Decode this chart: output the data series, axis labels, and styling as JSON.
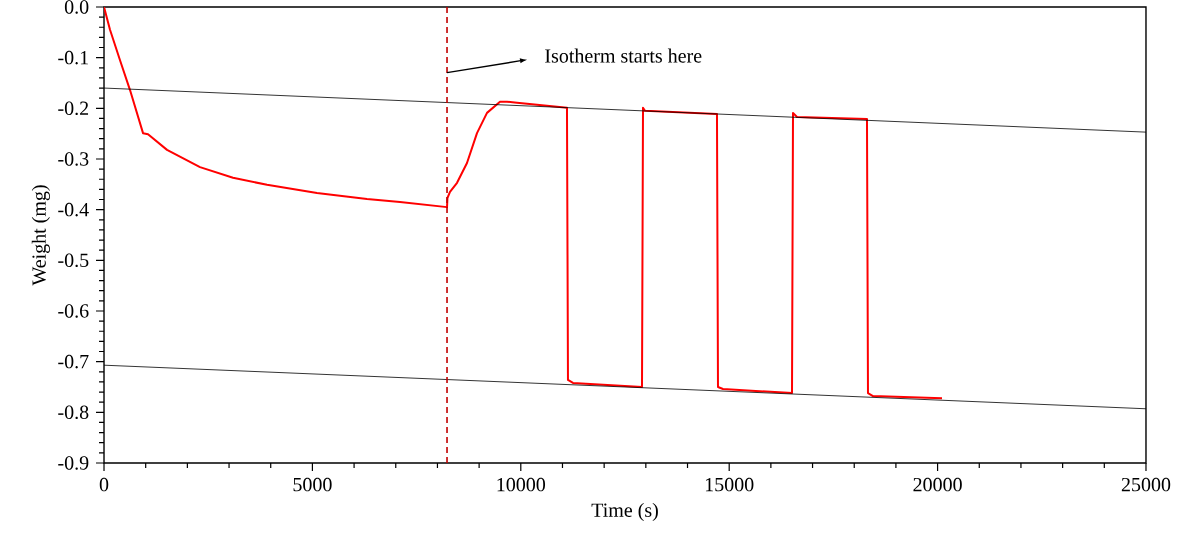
{
  "chart_data": {
    "type": "line",
    "xlabel": "Time (s)",
    "ylabel": "Weight (mg)",
    "xlim": [
      0,
      25000
    ],
    "ylim": [
      -0.9,
      0
    ],
    "xticks": [
      0,
      5000,
      10000,
      15000,
      20000,
      25000
    ],
    "yticks": [
      {
        "value": 0,
        "label": "0.0"
      },
      -0.1,
      -0.2,
      -0.3,
      -0.4,
      -0.5,
      -0.6,
      -0.7,
      -0.8,
      -0.9
    ],
    "series": [
      {
        "color": "#ff0000",
        "x": [
          0,
          144,
          384,
          624,
          936,
          1056,
          1512,
          2303,
          3095,
          3911,
          5110,
          6310,
          7102,
          8230,
          8240,
          8301,
          8470,
          8709,
          8949,
          9189,
          9501,
          9669,
          9909,
          11108,
          11132,
          11252,
          12908,
          12932,
          12980,
          14707,
          14731,
          14851,
          16507,
          16531,
          16627,
          18306,
          18330,
          18450,
          20106
        ],
        "values": [
          0,
          -0.045,
          -0.105,
          -0.164,
          -0.249,
          -0.251,
          -0.282,
          -0.316,
          -0.337,
          -0.351,
          -0.367,
          -0.379,
          -0.385,
          -0.395,
          -0.377,
          -0.365,
          -0.347,
          -0.308,
          -0.249,
          -0.209,
          -0.187,
          -0.187,
          -0.189,
          -0.199,
          -0.736,
          -0.742,
          -0.75,
          -0.199,
          -0.205,
          -0.211,
          -0.75,
          -0.754,
          -0.762,
          -0.209,
          -0.217,
          -0.221,
          -0.762,
          -0.768,
          -0.772
        ]
      },
      {
        "color": "#000000",
        "x": [
          0,
          25000
        ],
        "values": [
          -0.16,
          -0.247
        ]
      },
      {
        "color": "#000000",
        "x": [
          0,
          25000
        ],
        "values": [
          -0.707,
          -0.793
        ]
      }
    ],
    "ref_lines": [
      {
        "axis": "x",
        "value": 8230,
        "color": "#c00000",
        "line_style": "dashed"
      }
    ],
    "annotations": [
      "Isotherm starts here"
    ]
  }
}
